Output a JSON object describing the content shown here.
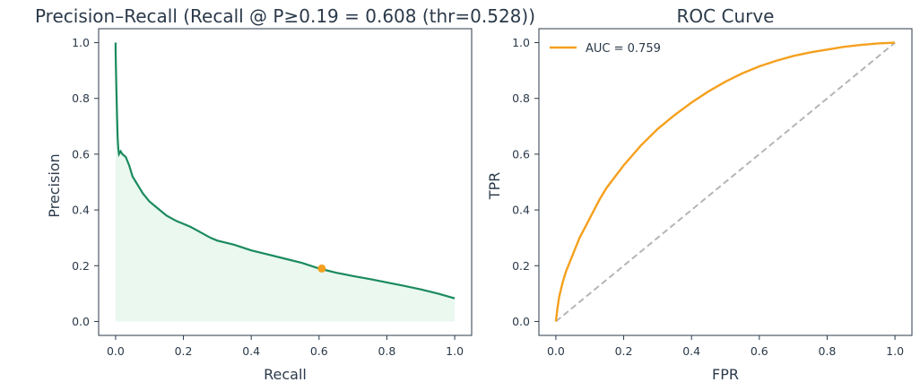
{
  "chart_data": [
    {
      "type": "area",
      "title": "Precision–Recall (Recall @ P≥0.19 = 0.608 (thr=0.528))",
      "xlabel": "Recall",
      "ylabel": "Precision",
      "xlim": [
        -0.05,
        1.05
      ],
      "ylim": [
        -0.05,
        1.05
      ],
      "xticks": [
        "0.0",
        "0.2",
        "0.4",
        "0.6",
        "0.8",
        "1.0"
      ],
      "yticks": [
        "0.0",
        "0.2",
        "0.4",
        "0.6",
        "0.8",
        "1.0"
      ],
      "grid": false,
      "series": [
        {
          "color": "#1a8a5e",
          "fill": "#eaf8ef",
          "x": [
            0.0,
            0.0,
            0.002,
            0.004,
            0.006,
            0.008,
            0.01,
            0.015,
            0.02,
            0.03,
            0.04,
            0.05,
            0.06,
            0.07,
            0.08,
            0.1,
            0.12,
            0.15,
            0.18,
            0.2,
            0.22,
            0.25,
            0.28,
            0.3,
            0.35,
            0.4,
            0.45,
            0.5,
            0.55,
            0.6,
            0.65,
            0.7,
            0.75,
            0.8,
            0.85,
            0.9,
            0.95,
            1.0
          ],
          "y": [
            1.0,
            0.97,
            0.85,
            0.75,
            0.66,
            0.62,
            0.6,
            0.61,
            0.6,
            0.59,
            0.56,
            0.52,
            0.5,
            0.48,
            0.46,
            0.43,
            0.41,
            0.38,
            0.36,
            0.35,
            0.34,
            0.32,
            0.3,
            0.29,
            0.275,
            0.255,
            0.24,
            0.225,
            0.21,
            0.19,
            0.175,
            0.163,
            0.152,
            0.14,
            0.128,
            0.115,
            0.1,
            0.083
          ]
        }
      ],
      "marker": {
        "x": 0.608,
        "y": 0.19,
        "color": "#f5a01e"
      }
    },
    {
      "type": "line",
      "title": "ROC Curve",
      "xlabel": "FPR",
      "ylabel": "TPR",
      "xlim": [
        -0.05,
        1.05
      ],
      "ylim": [
        -0.05,
        1.05
      ],
      "xticks": [
        "0.0",
        "0.2",
        "0.4",
        "0.6",
        "0.8",
        "1.0"
      ],
      "yticks": [
        "0.0",
        "0.2",
        "0.4",
        "0.6",
        "0.8",
        "1.0"
      ],
      "grid": false,
      "legend_position": "top-left",
      "series": [
        {
          "name": "AUC = 0.759",
          "color": "#f5a01e",
          "x": [
            0.0,
            0.005,
            0.01,
            0.02,
            0.03,
            0.05,
            0.07,
            0.1,
            0.13,
            0.15,
            0.2,
            0.25,
            0.3,
            0.35,
            0.4,
            0.45,
            0.5,
            0.55,
            0.6,
            0.65,
            0.7,
            0.75,
            0.8,
            0.85,
            0.9,
            0.95,
            1.0
          ],
          "y": [
            0.0,
            0.05,
            0.09,
            0.14,
            0.18,
            0.24,
            0.3,
            0.37,
            0.44,
            0.48,
            0.56,
            0.63,
            0.69,
            0.74,
            0.785,
            0.825,
            0.86,
            0.89,
            0.915,
            0.935,
            0.952,
            0.965,
            0.975,
            0.985,
            0.992,
            0.997,
            1.0
          ]
        },
        {
          "color": "#b5b5b5",
          "dashed": true,
          "x": [
            0.0,
            1.0
          ],
          "y": [
            0.0,
            1.0
          ]
        }
      ]
    }
  ]
}
